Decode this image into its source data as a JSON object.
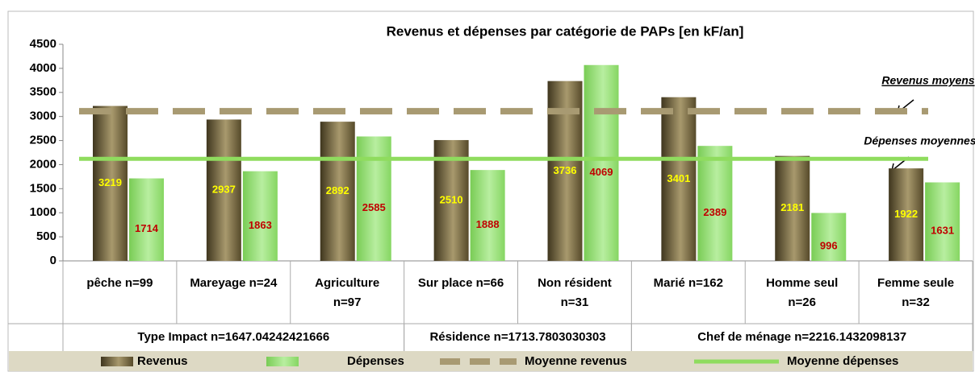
{
  "chart_data": {
    "type": "bar",
    "title": "Revenus et dépenses par catégorie de PAPs [en kF/an]",
    "categories": [
      "pêche n=99",
      "Mareyage n=24",
      "Agriculture n=97",
      "Sur place n=66",
      "Non résident n=31",
      "Marié n=162",
      "Homme seul n=26",
      "Femme seule n=32"
    ],
    "groups": [
      {
        "label": "Type Impact n=1647.04242421666",
        "span": 3
      },
      {
        "label": "Résidence n=1713.7803030303",
        "span": 2
      },
      {
        "label": "Chef de ménage n=2216.1432098137",
        "span": 3
      }
    ],
    "series": [
      {
        "name": "Revenus",
        "color": "#6b5d38",
        "values": [
          3219,
          2937,
          2892,
          2510,
          3736,
          3401,
          2181,
          1922
        ],
        "label_color": "#ffff00"
      },
      {
        "name": "Dépenses",
        "color": "#9ee07c",
        "values": [
          1714,
          1863,
          2585,
          1888,
          4069,
          2389,
          996,
          1631
        ],
        "label_color": "#c00000"
      }
    ],
    "reference_lines": [
      {
        "name": "Moyenne revenus",
        "value": 3110,
        "color": "#a89a72",
        "dashed": true
      },
      {
        "name": "Moyenne dépenses",
        "value": 2120,
        "color": "#8fdc5e",
        "dashed": false
      }
    ],
    "annotations": [
      "Revenus moyens",
      "Dépenses moyennes"
    ],
    "ylim": [
      0,
      4500
    ],
    "yticks": [
      0,
      500,
      1000,
      1500,
      2000,
      2500,
      3000,
      3500,
      4000,
      4500
    ],
    "grid": false
  }
}
